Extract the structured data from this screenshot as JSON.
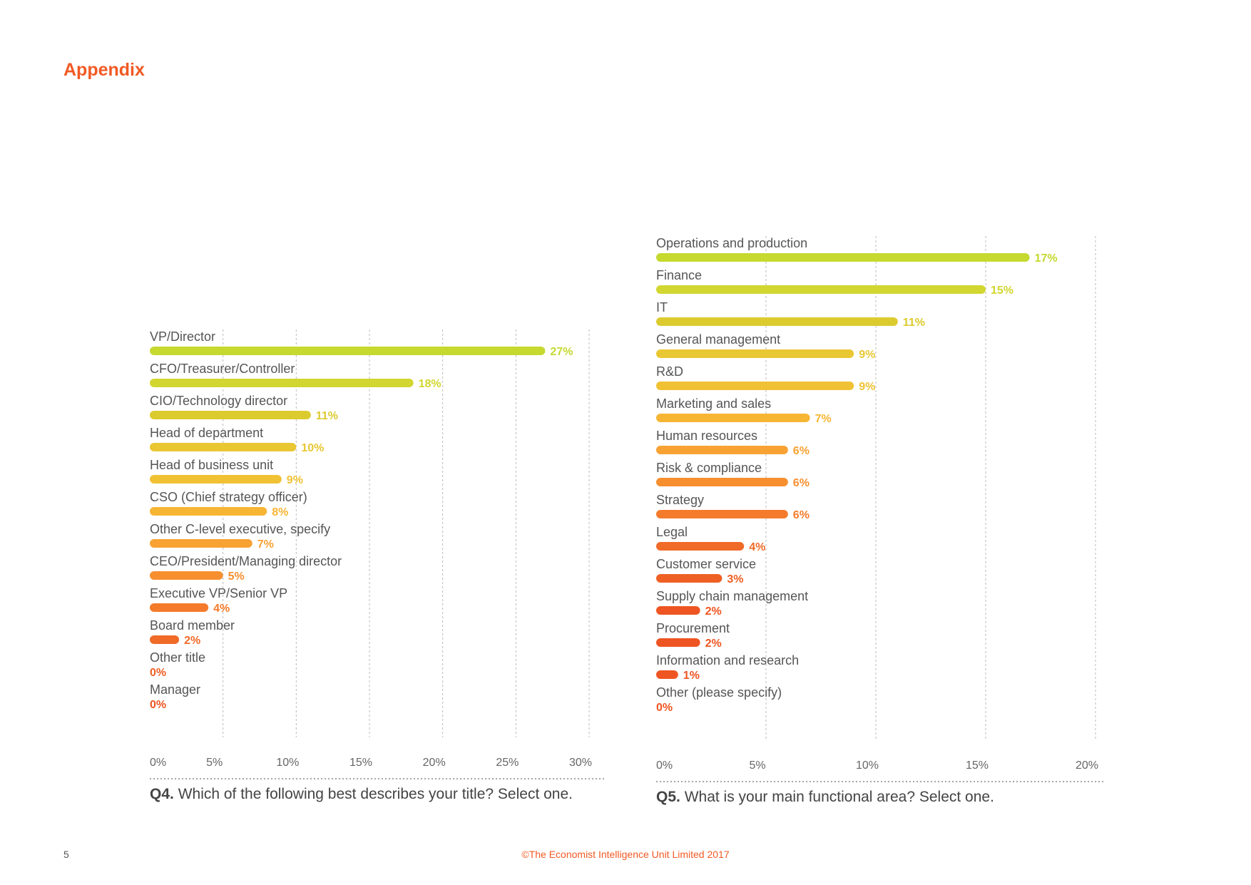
{
  "header": {
    "title": "Appendix"
  },
  "footer": {
    "page_number": "5",
    "copyright": "©The Economist Intelligence Unit Limited 2017"
  },
  "colors": {
    "accent": "#F15A24",
    "palette": [
      "#C5D92F",
      "#D2D630",
      "#DCCB2F",
      "#E9C733",
      "#F0C133",
      "#F7B534",
      "#F8A233",
      "#F78F2F",
      "#F47B2B",
      "#F06A28",
      "#EF6024",
      "#EE5522",
      "#EE5522",
      "#EE5522",
      "#EE5522"
    ]
  },
  "chart_data": [
    {
      "type": "bar",
      "orientation": "horizontal",
      "question_number": "Q4.",
      "question_text": " Which of the following best describes your title? Select one.",
      "categories": [
        "VP/Director",
        "CFO/Treasurer/Controller",
        "CIO/Technology director",
        "Head of department",
        "Head of business unit",
        "CSO (Chief strategy officer)",
        "Other C-level executive, specify",
        "CEO/President/Managing director",
        "Executive VP/Senior VP",
        "Board member",
        "Other title",
        "Manager"
      ],
      "values": [
        27,
        18,
        11,
        10,
        9,
        8,
        7,
        5,
        4,
        2,
        0,
        0
      ],
      "value_labels": [
        "27%",
        "18%",
        "11%",
        "10%",
        "9%",
        "8%",
        "7%",
        "5%",
        "4%",
        "2%",
        "0%",
        "0%"
      ],
      "ticks": [
        0,
        5,
        10,
        15,
        20,
        25,
        30
      ],
      "tick_labels": [
        "0%",
        "5%",
        "10%",
        "15%",
        "20%",
        "25%",
        "30%"
      ],
      "xlim": [
        0,
        30
      ],
      "grid": true,
      "legend": "none"
    },
    {
      "type": "bar",
      "orientation": "horizontal",
      "question_number": "Q5.",
      "question_text": " What is your main functional area? Select one.",
      "categories": [
        "Operations and production",
        "Finance",
        "IT",
        "General management",
        "R&D",
        "Marketing and sales",
        "Human resources",
        "Risk & compliance",
        "Strategy",
        "Legal",
        "Customer service",
        "Supply chain management",
        "Procurement",
        "Information and research",
        "Other (please specify)"
      ],
      "values": [
        17,
        15,
        11,
        9,
        9,
        7,
        6,
        6,
        6,
        4,
        3,
        2,
        2,
        1,
        0
      ],
      "value_labels": [
        "17%",
        "15%",
        "11%",
        "9%",
        "9%",
        "7%",
        "6%",
        "6%",
        "6%",
        "4%",
        "3%",
        "2%",
        "2%",
        "1%",
        "0%"
      ],
      "ticks": [
        0,
        5,
        10,
        15,
        20
      ],
      "tick_labels": [
        "0%",
        "5%",
        "10%",
        "15%",
        "20%"
      ],
      "xlim": [
        0,
        20
      ],
      "grid": true,
      "legend": "none"
    }
  ]
}
